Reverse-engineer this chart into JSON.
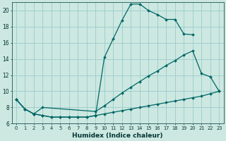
{
  "xlabel": "Humidex (Indice chaleur)",
  "bg_color": "#cce8e0",
  "grid_color": "#99cccc",
  "line_color": "#006666",
  "xlim": [
    -0.5,
    23.5
  ],
  "ylim": [
    6,
    21
  ],
  "yticks": [
    6,
    8,
    10,
    12,
    14,
    16,
    18,
    20
  ],
  "xticks": [
    0,
    1,
    2,
    3,
    4,
    5,
    6,
    7,
    8,
    9,
    10,
    11,
    12,
    13,
    14,
    15,
    16,
    17,
    18,
    19,
    20,
    21,
    22,
    23
  ],
  "line1_x": [
    0,
    1,
    2,
    3,
    4,
    5,
    6,
    7,
    8,
    9,
    10,
    11,
    12,
    13,
    14,
    15,
    16,
    17,
    18,
    19,
    20
  ],
  "line1_y": [
    9.0,
    7.8,
    7.2,
    7.0,
    6.8,
    6.8,
    6.8,
    6.8,
    6.8,
    7.0,
    14.2,
    16.5,
    18.8,
    20.8,
    20.8,
    20.0,
    19.5,
    18.9,
    18.9,
    17.1,
    17.0
  ],
  "line2_x": [
    0,
    1,
    2,
    3,
    9,
    10,
    11,
    12,
    13,
    14,
    15,
    16,
    17,
    18,
    19,
    20,
    21,
    22,
    23
  ],
  "line2_y": [
    9.0,
    7.8,
    7.2,
    8.0,
    7.5,
    8.2,
    9.0,
    9.8,
    10.5,
    11.2,
    11.9,
    12.5,
    13.2,
    13.8,
    14.5,
    15.0,
    12.2,
    11.8,
    10.0
  ],
  "line3_x": [
    0,
    1,
    2,
    3,
    4,
    5,
    6,
    7,
    8,
    9,
    10,
    11,
    12,
    13,
    14,
    15,
    16,
    17,
    18,
    19,
    20,
    21,
    22,
    23
  ],
  "line3_y": [
    9.0,
    7.8,
    7.2,
    7.0,
    6.8,
    6.8,
    6.8,
    6.8,
    6.8,
    7.0,
    7.2,
    7.4,
    7.6,
    7.8,
    8.0,
    8.2,
    8.4,
    8.6,
    8.8,
    9.0,
    9.2,
    9.4,
    9.7,
    10.0
  ]
}
